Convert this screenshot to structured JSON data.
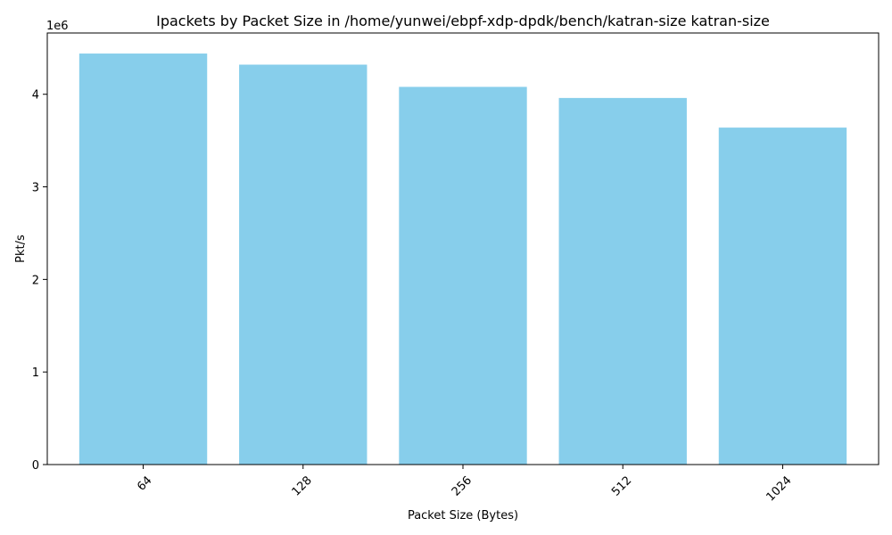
{
  "chart_data": {
    "type": "bar",
    "title": "Ipackets by Packet Size in /home/yunwei/ebpf-xdp-dpdk/bench/katran-size katran-size",
    "xlabel": "Packet Size (Bytes)",
    "ylabel": "Pkt/s",
    "y_scale_label": "1e6",
    "categories": [
      "64",
      "128",
      "256",
      "512",
      "1024"
    ],
    "values": [
      4440000,
      4320000,
      4080000,
      3960000,
      3640000
    ],
    "ylim": [
      0,
      4662000
    ],
    "yticks": [
      0,
      1000000,
      2000000,
      3000000,
      4000000
    ],
    "ytick_labels": [
      "0",
      "1",
      "2",
      "3",
      "4"
    ],
    "bar_color": "#87ceeb",
    "grid": false,
    "legend": "none"
  }
}
